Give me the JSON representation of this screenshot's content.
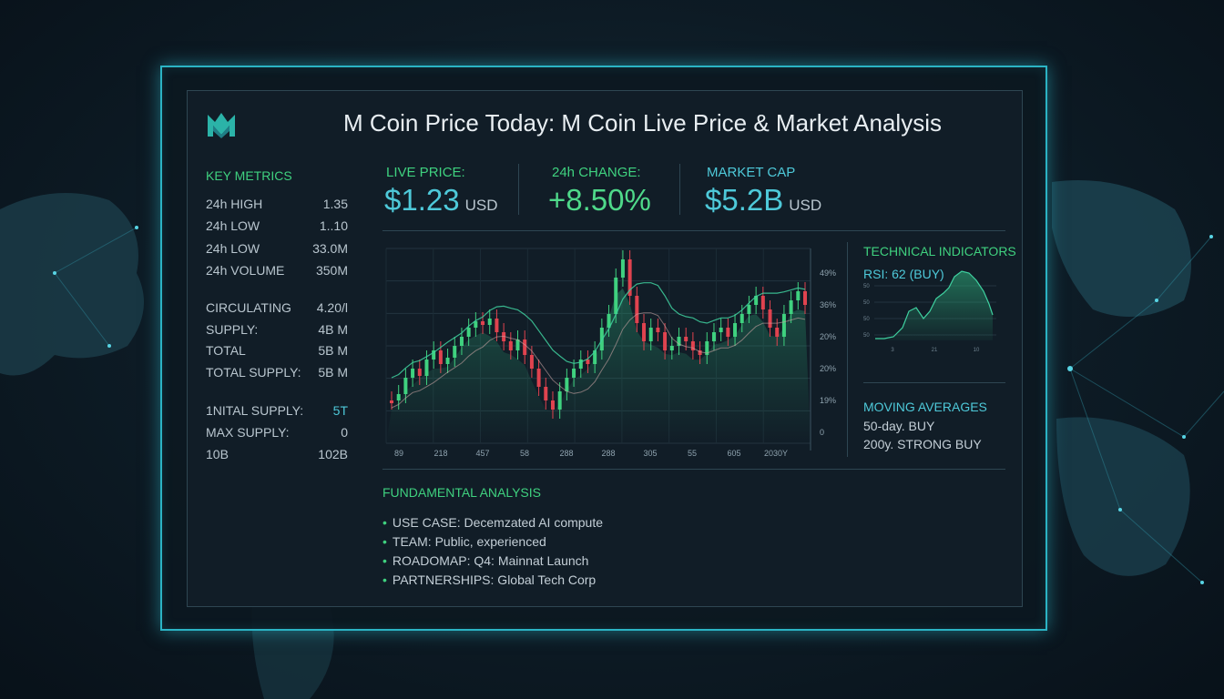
{
  "header": {
    "title": "M Coin Price Today: M Coin Live Price & Market Analysis",
    "logo_icon": "m-coin-logo-icon"
  },
  "colors": {
    "accent": "#2bb3c4",
    "up": "#3fd17f",
    "down": "#e0434f",
    "cyan": "#4ec9d9"
  },
  "key_metrics": {
    "title": "KEY METRICS",
    "rows": [
      {
        "label": "24h HIGH",
        "value": "1.35"
      },
      {
        "label": "24h LOW",
        "value": "1..10"
      },
      {
        "label": "24h LOW",
        "value": "33.0M"
      },
      {
        "label": "24h VOLUME",
        "value": "350M"
      },
      {
        "label": "CIRCULATING",
        "value": "4.20/l"
      },
      {
        "label": "SUPPLY:",
        "value": "4B M"
      },
      {
        "label": "TOTAL",
        "value": "5B M"
      },
      {
        "label": "TOTAL SUPPLY:",
        "value": "5B M"
      },
      {
        "label": "1NITAL SUPPLY:",
        "value": "5T"
      },
      {
        "label": "MAX SUPPLY:",
        "value": "0"
      },
      {
        "label": "10B",
        "value": "102B"
      }
    ]
  },
  "stats": {
    "live_price": {
      "label": "LIVE PRICE:",
      "value": "$1.23",
      "unit": "USD"
    },
    "change_24h": {
      "label": "24h CHANGE:",
      "value": "+8.50%"
    },
    "market_cap": {
      "label": "MARKET CAP",
      "value": "$5.2B",
      "unit": "USD"
    }
  },
  "price_chart": {
    "y_ticks": [
      "49%",
      "36%",
      "20%",
      "20%",
      "19%",
      "0"
    ],
    "x_ticks": [
      "89",
      "218",
      "457",
      "58",
      "288",
      "288",
      "305",
      "55",
      "605",
      "2030Y"
    ]
  },
  "technical_indicators": {
    "title": "TECHNICAL INDICATORS",
    "rsi_label": "RSI: 62 (BUY)",
    "rsi_y_ticks": [
      "50",
      "50",
      "50",
      "50"
    ],
    "rsi_x_ticks": [
      "3",
      "21",
      "10"
    ]
  },
  "moving_averages": {
    "title": "MOVING AVERAGES",
    "items": [
      "50-day. BUY",
      "200y. STRONG BUY"
    ]
  },
  "fundamental_analysis": {
    "title": "FUNDAMENTAL ANALYSIS",
    "items": [
      "USE CASE: Decemzated AI compute",
      "TEAM: Public, experienced",
      "ROADOMAP: Q4: Mainnat Launch",
      "PARTNERSHIPS: Global Tech Corp"
    ]
  }
}
